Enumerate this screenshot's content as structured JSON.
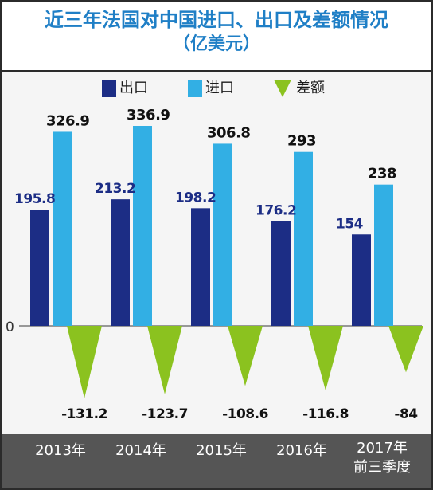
{
  "title": {
    "line1": "近三年法国对中国进口、出口及差额情况",
    "line2": "（亿美元）"
  },
  "colors": {
    "export": "#1c2d85",
    "import": "#32afe4",
    "balance": "#8bc21f",
    "category_bar": "#555555",
    "title": "#1f7fc6"
  },
  "legend": [
    {
      "key": "export",
      "label": "出口",
      "shape": "square"
    },
    {
      "key": "import",
      "label": "进口",
      "shape": "square"
    },
    {
      "key": "balance",
      "label": "差额",
      "shape": "triangle"
    }
  ],
  "chart_data": {
    "type": "bar",
    "categories": [
      {
        "line1": "2013年",
        "line2": ""
      },
      {
        "line1": "2014年",
        "line2": ""
      },
      {
        "line1": "2015年",
        "line2": ""
      },
      {
        "line1": "2016年",
        "line2": ""
      },
      {
        "line1": "2017年",
        "line2": "前三季度"
      }
    ],
    "series": [
      {
        "name": "出口",
        "key": "export",
        "values": [
          195.8,
          213.2,
          198.2,
          176.2,
          154
        ],
        "labels": [
          "195.8",
          "213.2",
          "198.2",
          "176.2",
          "154"
        ]
      },
      {
        "name": "进口",
        "key": "import",
        "values": [
          326.9,
          336.9,
          306.8,
          293,
          238
        ],
        "labels": [
          "326.9",
          "336.9",
          "306.8",
          "293",
          "238"
        ]
      },
      {
        "name": "差额",
        "key": "balance",
        "values": [
          -131.2,
          -123.7,
          -108.6,
          -116.8,
          -84
        ],
        "labels": [
          "-131.2",
          "-123.7",
          "-108.6",
          "-116.8",
          "-84"
        ]
      }
    ],
    "zero_label": "0",
    "ylim": [
      -131.2,
      336.9
    ],
    "grid": false,
    "legend_position": "top-left"
  }
}
